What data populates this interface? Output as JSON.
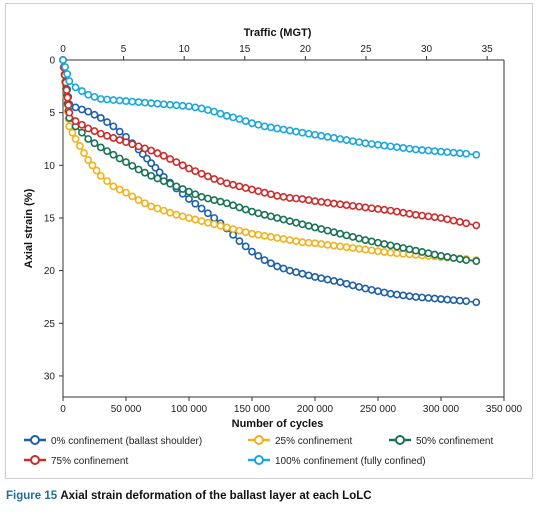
{
  "chart_data": {
    "type": "line",
    "title": "",
    "xlabel": "Number of cycles",
    "ylabel": "Axial strain (%)",
    "x2label": "Traffic (MGT)",
    "xlim": [
      0,
      350000
    ],
    "ylim": [
      0,
      32
    ],
    "y_inverted": true,
    "x2lim": [
      0,
      36.39
    ],
    "xticks": [
      0,
      50000,
      100000,
      150000,
      200000,
      250000,
      300000,
      350000
    ],
    "xtick_labels": [
      "0",
      "50 000",
      "100 000",
      "150 000",
      "200 000",
      "250 000",
      "300 000",
      "350 000"
    ],
    "x2ticks": [
      0,
      5,
      10,
      15,
      20,
      25,
      30,
      35
    ],
    "x2tick_labels": [
      "0",
      "5",
      "10",
      "15",
      "20",
      "25",
      "30",
      "35"
    ],
    "yticks": [
      0,
      5,
      10,
      15,
      20,
      25,
      30
    ],
    "ytick_labels": [
      "0",
      "5",
      "10",
      "15",
      "20",
      "25",
      "30"
    ],
    "grid": false,
    "legend_position": "bottom",
    "x": [
      0,
      5000,
      10000,
      20000,
      30000,
      40000,
      50000,
      60000,
      70000,
      80000,
      90000,
      100000,
      110000,
      120000,
      130000,
      140000,
      150000,
      160000,
      170000,
      180000,
      190000,
      200000,
      220000,
      240000,
      260000,
      280000,
      300000,
      320000,
      328000
    ],
    "series": [
      {
        "name": "0% confinement (ballast shoulder)",
        "color": "#1f5fa8",
        "values": [
          0,
          4.2,
          4.5,
          4.9,
          5.5,
          6.3,
          7.3,
          8.5,
          9.8,
          11.1,
          12.2,
          13.2,
          14.1,
          15.0,
          16.0,
          17.2,
          18.2,
          19.0,
          19.6,
          20.0,
          20.3,
          20.6,
          21.1,
          21.7,
          22.2,
          22.5,
          22.7,
          22.9,
          23.0
        ]
      },
      {
        "name": "25% confinement",
        "color": "#f2b21b",
        "values": [
          0,
          6.3,
          7.5,
          9.5,
          11.0,
          12.0,
          12.6,
          13.3,
          13.9,
          14.3,
          14.7,
          15.0,
          15.3,
          15.6,
          15.9,
          16.2,
          16.5,
          16.7,
          16.9,
          17.1,
          17.3,
          17.4,
          17.7,
          18.0,
          18.3,
          18.5,
          18.7,
          18.9,
          19.0
        ]
      },
      {
        "name": "50% confinement",
        "color": "#1a7355",
        "values": [
          0,
          5.5,
          6.3,
          7.5,
          8.3,
          9.0,
          9.7,
          10.4,
          11.0,
          11.5,
          12.0,
          12.5,
          13.0,
          13.3,
          13.6,
          14.0,
          14.4,
          14.7,
          15.0,
          15.3,
          15.6,
          15.9,
          16.5,
          17.1,
          17.6,
          18.1,
          18.6,
          19.0,
          19.1
        ]
      },
      {
        "name": "75% confinement",
        "color": "#d12b2b",
        "values": [
          0,
          5.0,
          5.8,
          6.5,
          7.0,
          7.4,
          7.8,
          8.2,
          8.6,
          9.1,
          9.7,
          10.3,
          10.8,
          11.3,
          11.7,
          12.0,
          12.3,
          12.6,
          12.9,
          13.1,
          13.2,
          13.4,
          13.7,
          14.0,
          14.3,
          14.7,
          15.0,
          15.5,
          15.7
        ]
      },
      {
        "name": "100% confinement (fully confined)",
        "color": "#1aa7dd",
        "values": [
          0,
          2.0,
          2.6,
          3.3,
          3.7,
          3.8,
          3.9,
          4.0,
          4.1,
          4.2,
          4.3,
          4.4,
          4.6,
          4.9,
          5.3,
          5.6,
          6.0,
          6.3,
          6.5,
          6.7,
          6.9,
          7.1,
          7.5,
          7.9,
          8.2,
          8.5,
          8.7,
          8.9,
          9.0
        ]
      }
    ]
  },
  "caption": {
    "figure_label": "Figure 15",
    "text": "Axial strain deformation of the ballast layer at each LoLC"
  }
}
